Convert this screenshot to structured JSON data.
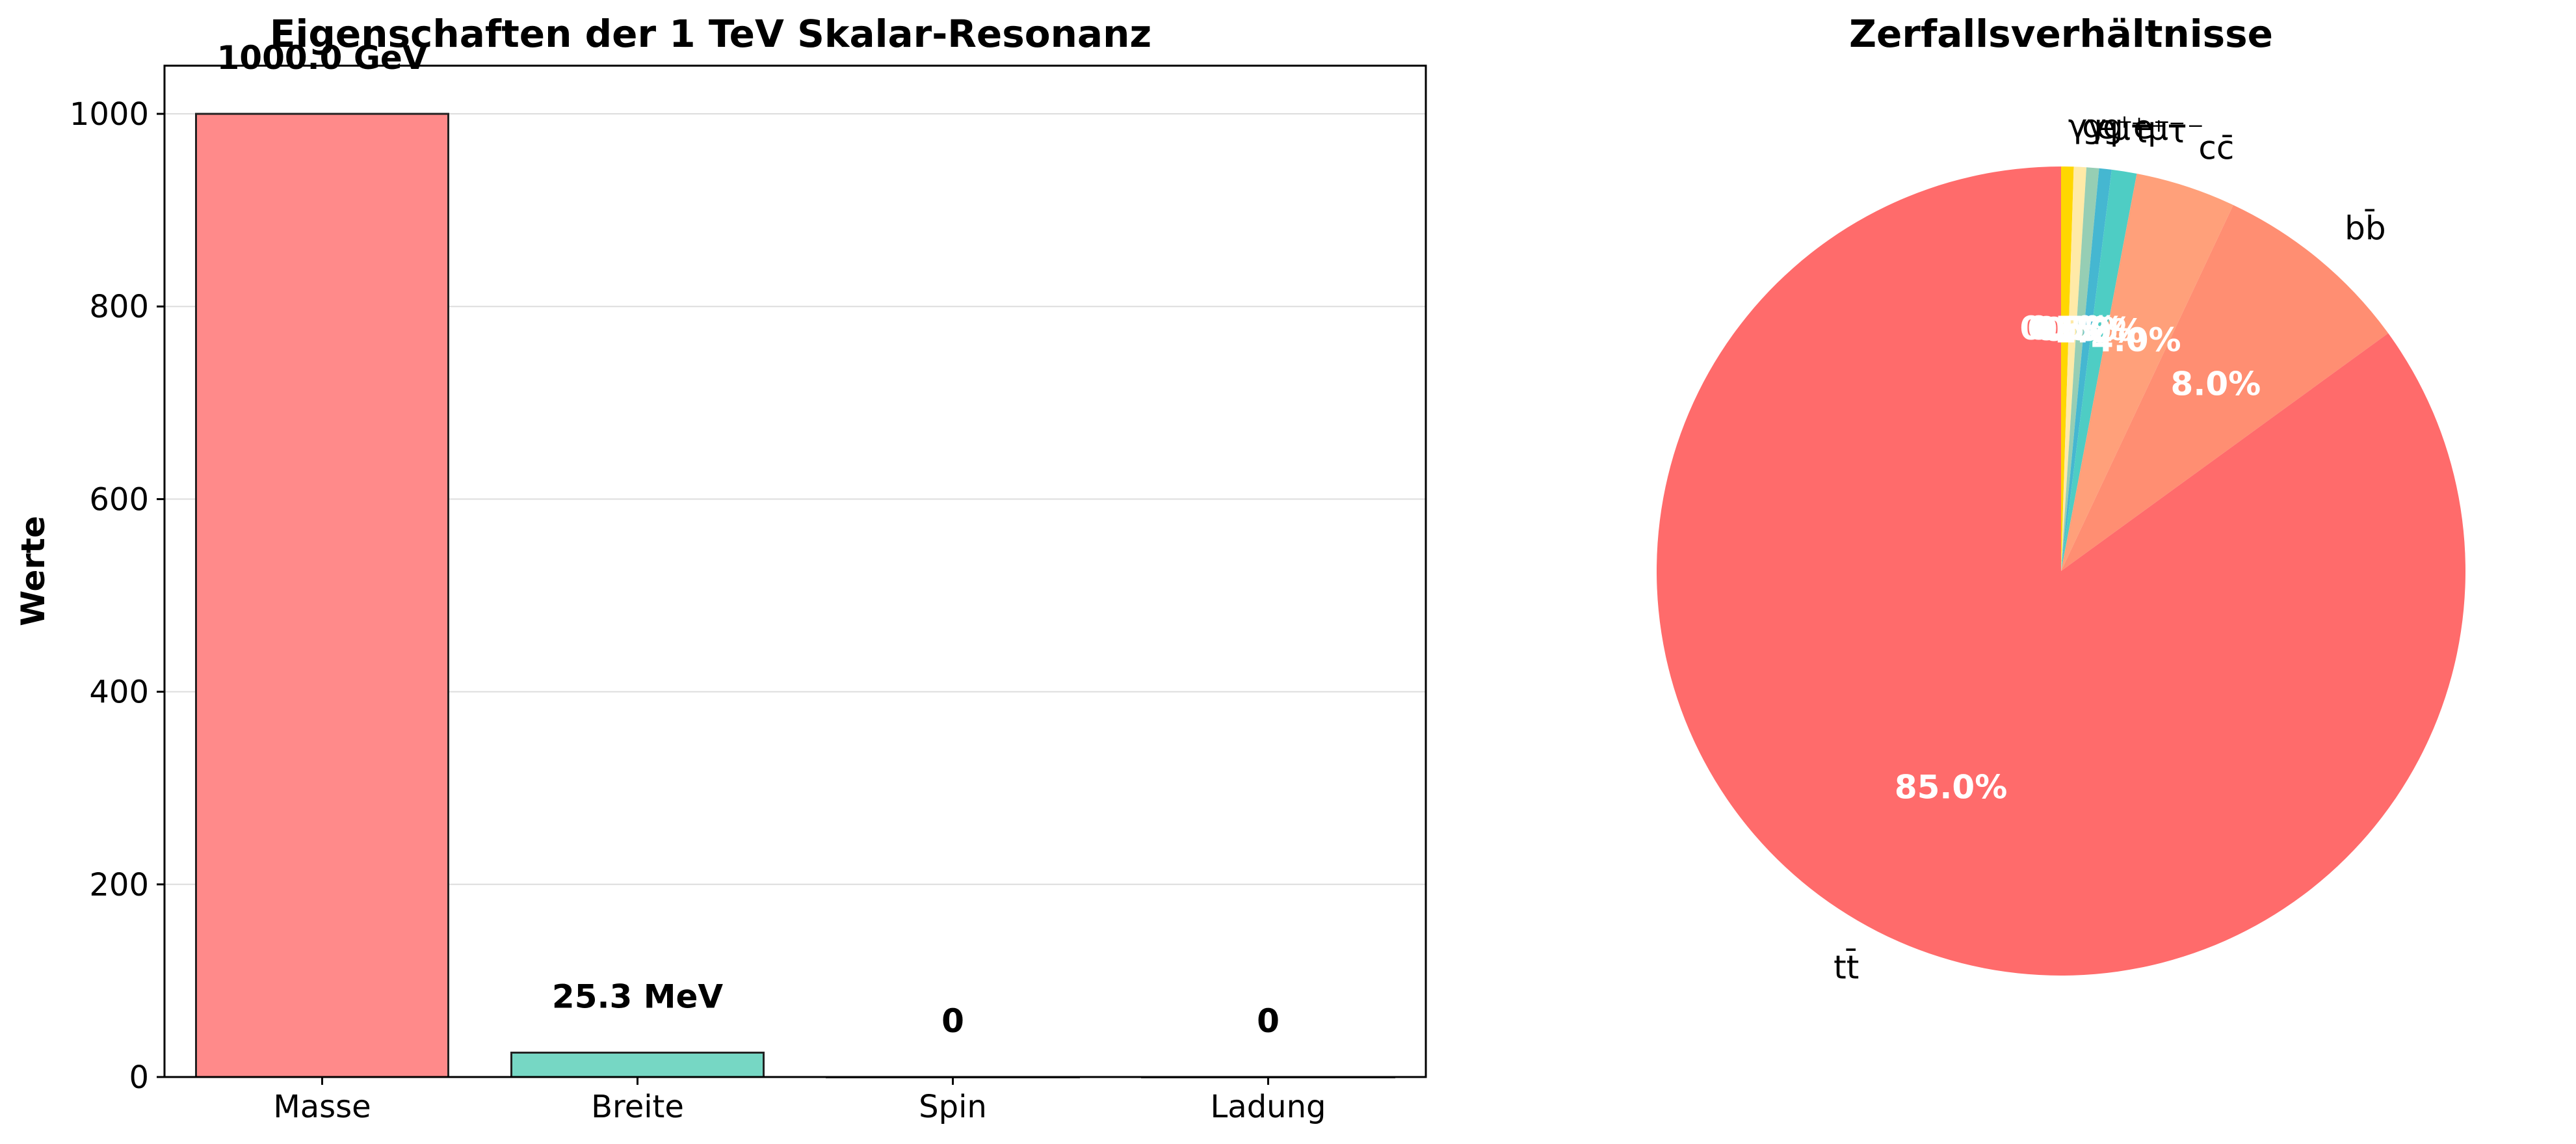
{
  "chart_data": [
    {
      "type": "bar",
      "title": "Eigenschaften der 1 TeV Skalar-Resonanz",
      "xlabel": "",
      "ylabel": "Werte",
      "categories": [
        "Masse",
        "Breite",
        "Spin",
        "Ladung"
      ],
      "values": [
        1000.0,
        25.3,
        0,
        0
      ],
      "data_labels": [
        "1000.0 GeV",
        "25.3 MeV",
        "0",
        "0"
      ],
      "colors": [
        "#ff8a8a",
        "#76d7c4",
        "#7ec8e3",
        "#a8e6cf"
      ],
      "ylim": [
        0,
        1050
      ],
      "yticks": [
        0,
        200,
        400,
        600,
        800,
        1000
      ],
      "grid": "horizontal"
    },
    {
      "type": "pie",
      "title": "Zerfallsverhältnisse",
      "labels": [
        "tt̄",
        "bb̄",
        "cc̄",
        "τ⁺τ⁻",
        "μ⁺μ⁻",
        "e⁺e⁻",
        "gg",
        "γγ"
      ],
      "values": [
        85.0,
        8.0,
        4.0,
        1.0,
        0.5,
        0.5,
        0.5,
        0.5
      ],
      "pct_labels": [
        "85.0%",
        "8.0%",
        "4.0%",
        "1.0%",
        "0.5%",
        "0.5%",
        "0.5%",
        "0.5%"
      ],
      "colors": [
        "#ff6b6b",
        "#ff8e72",
        "#ffa07a",
        "#4ecdc4",
        "#45b7d1",
        "#96ceb4",
        "#ffeaa7",
        "#ffd700"
      ],
      "start_angle_deg": 90,
      "direction": "clockwise"
    }
  ]
}
